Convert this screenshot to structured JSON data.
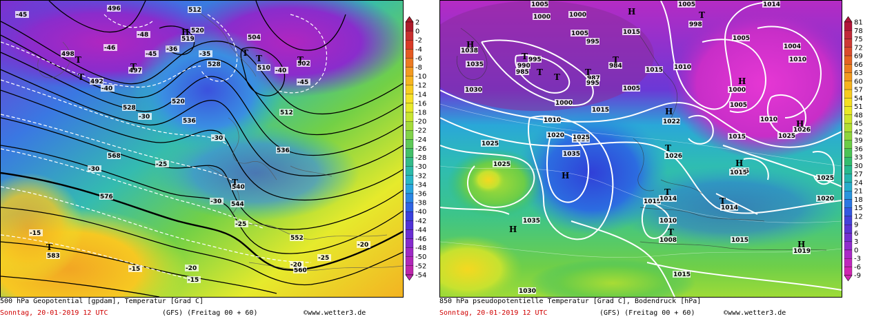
{
  "left": {
    "caption_title": "500 hPa Geopotential [gpdam], Temperatur [Grad C]",
    "caption_date": "Sonntag, 20-01-2019  12 UTC",
    "caption_model": "(GFS)  (Freitag 00 + 60)",
    "caption_copyright": "©www.wetter3.de",
    "scale_ticks": [
      "2",
      "0",
      "-2",
      "-4",
      "-6",
      "-8",
      "-10",
      "-12",
      "-14",
      "-16",
      "-18",
      "-20",
      "-22",
      "-24",
      "-26",
      "-28",
      "-30",
      "-32",
      "-34",
      "-36",
      "-38",
      "-40",
      "-42",
      "-44",
      "-46",
      "-48",
      "-50",
      "-52",
      "-54"
    ],
    "scale_colors": [
      "#ad1a2a",
      "#c72f2f",
      "#d83b28",
      "#e45a23",
      "#ec7a22",
      "#f29a22",
      "#f6b522",
      "#f8cd22",
      "#f7e22a",
      "#e8ea2c",
      "#c9e632",
      "#a6dd3a",
      "#82d34a",
      "#5ec957",
      "#43c06a",
      "#33bb8a",
      "#2dbaa9",
      "#2ab7c7",
      "#2aa6de",
      "#2b86e4",
      "#2f63e4",
      "#3a40de",
      "#5032d6",
      "#6a2ed2",
      "#852bcc",
      "#9e2ac4",
      "#b028b8",
      "#bd27ab"
    ],
    "labels": [
      {
        "t": "-45",
        "c": "#fff"
      },
      {
        "t": "496",
        "c": "#000"
      },
      {
        "t": "512",
        "c": "#000"
      },
      {
        "t": "-48",
        "c": "#000"
      },
      {
        "t": "-46",
        "c": "#000"
      },
      {
        "t": "-45",
        "c": "#000"
      },
      {
        "t": "-36",
        "c": "#000"
      },
      {
        "t": "-35",
        "c": "#000"
      },
      {
        "t": "498",
        "c": "#000"
      },
      {
        "t": "519",
        "c": "#000"
      },
      {
        "t": "520",
        "c": "#000"
      },
      {
        "t": "504",
        "c": "#000"
      },
      {
        "t": "528",
        "c": "#000"
      },
      {
        "t": "-40",
        "c": "#000"
      },
      {
        "t": "-45",
        "c": "#000"
      },
      {
        "t": "502",
        "c": "#000"
      },
      {
        "t": "510",
        "c": "#000"
      },
      {
        "t": "497",
        "c": "#000"
      },
      {
        "t": "492",
        "c": "#000"
      },
      {
        "t": "-40",
        "c": "#000"
      },
      {
        "t": "528",
        "c": "#000"
      },
      {
        "t": "536",
        "c": "#000"
      },
      {
        "t": "-30",
        "c": "#000"
      },
      {
        "t": "-30",
        "c": "#000"
      },
      {
        "t": "544",
        "c": "#000"
      },
      {
        "t": "568",
        "c": "#000"
      },
      {
        "t": "-30",
        "c": "#000"
      },
      {
        "t": "-25",
        "c": "#000"
      },
      {
        "t": "540",
        "c": "#000"
      },
      {
        "t": "576",
        "c": "#000"
      },
      {
        "t": "-30",
        "c": "#000"
      },
      {
        "t": "-25",
        "c": "#000"
      },
      {
        "t": "552",
        "c": "#000"
      },
      {
        "t": "-20",
        "c": "#000"
      },
      {
        "t": "-15",
        "c": "#000"
      },
      {
        "t": "583",
        "c": "#000"
      },
      {
        "t": "-15",
        "c": "#000"
      },
      {
        "t": "-20",
        "c": "#000"
      },
      {
        "t": "560",
        "c": "#000"
      },
      {
        "t": "-15",
        "c": "#000"
      },
      {
        "t": "-20",
        "c": "#000"
      },
      {
        "t": "-25",
        "c": "#000"
      },
      {
        "t": "512",
        "c": "#000"
      },
      {
        "t": "520",
        "c": "#000"
      },
      {
        "t": "536",
        "c": "#000"
      }
    ],
    "pressure_marks": [
      "T",
      "H",
      "T",
      "T",
      "T",
      "T",
      "T",
      "T",
      "T"
    ]
  },
  "right": {
    "caption_title": "850 hPa pseudopotentielle Temperatur [Grad C], Bodendruck [hPa]",
    "caption_date": "Sonntag, 20-01-2019  12 UTC",
    "caption_model": "(GFS)  (Freitag 00 + 60)",
    "caption_copyright": "©www.wetter3.de",
    "scale_ticks": [
      "81",
      "78",
      "75",
      "72",
      "69",
      "66",
      "63",
      "60",
      "57",
      "54",
      "51",
      "48",
      "45",
      "42",
      "39",
      "36",
      "33",
      "30",
      "27",
      "24",
      "21",
      "18",
      "15",
      "12",
      "9",
      "6",
      "3",
      "0",
      "-3",
      "-6",
      "-9"
    ],
    "scale_colors": [
      "#b2163a",
      "#c02a3a",
      "#cd3a36",
      "#da4c2e",
      "#e46424",
      "#ec7f20",
      "#f29a1f",
      "#f6b31f",
      "#f8cb20",
      "#f6df22",
      "#eae927",
      "#cfe62d",
      "#b1df33",
      "#8fd63c",
      "#6ccd47",
      "#4bc456",
      "#33bd6f",
      "#28b98e",
      "#25b5ad",
      "#27adca",
      "#2a95dd",
      "#2c77e2",
      "#3358e0",
      "#4341d9",
      "#5a34d4",
      "#7430d0",
      "#902dcc",
      "#aa2ac6",
      "#c028bc",
      "#cf27b1"
    ],
    "labels": [
      {
        "t": "1005",
        "c": "#000"
      },
      {
        "t": "1000",
        "c": "#000"
      },
      {
        "t": "1015",
        "c": "#000"
      },
      {
        "t": "1005",
        "c": "#000"
      },
      {
        "t": "1014",
        "c": "#000"
      },
      {
        "t": "998",
        "c": "#000"
      },
      {
        "t": "1038",
        "c": "#000"
      },
      {
        "t": "1035",
        "c": "#000"
      },
      {
        "t": "1030",
        "c": "#000"
      },
      {
        "t": "995",
        "c": "#000"
      },
      {
        "t": "990",
        "c": "#000"
      },
      {
        "t": "985",
        "c": "#000"
      },
      {
        "t": "1000",
        "c": "#000"
      },
      {
        "t": "1005",
        "c": "#000"
      },
      {
        "t": "995",
        "c": "#000"
      },
      {
        "t": "984",
        "c": "#000"
      },
      {
        "t": "987",
        "c": "#000"
      },
      {
        "t": "995",
        "c": "#000"
      },
      {
        "t": "1015",
        "c": "#000"
      },
      {
        "t": "1010",
        "c": "#000"
      },
      {
        "t": "1005",
        "c": "#000"
      },
      {
        "t": "1000",
        "c": "#000"
      },
      {
        "t": "1010",
        "c": "#000"
      },
      {
        "t": "1015",
        "c": "#000"
      },
      {
        "t": "1020",
        "c": "#000"
      },
      {
        "t": "1025",
        "c": "#000"
      },
      {
        "t": "1030",
        "c": "#000"
      },
      {
        "t": "1035",
        "c": "#000"
      },
      {
        "t": "1025",
        "c": "#000"
      },
      {
        "t": "1022",
        "c": "#000"
      },
      {
        "t": "1025",
        "c": "#000"
      },
      {
        "t": "1026",
        "c": "#000"
      },
      {
        "t": "1026",
        "c": "#000"
      },
      {
        "t": "1015",
        "c": "#000"
      },
      {
        "t": "1015",
        "c": "#000"
      },
      {
        "t": "1014",
        "c": "#000"
      },
      {
        "t": "1014",
        "c": "#000"
      },
      {
        "t": "1015",
        "c": "#000"
      },
      {
        "t": "1010",
        "c": "#000"
      },
      {
        "t": "1008",
        "c": "#000"
      },
      {
        "t": "1015",
        "c": "#000"
      },
      {
        "t": "1019",
        "c": "#000"
      },
      {
        "t": "1015",
        "c": "#000"
      },
      {
        "t": "1030",
        "c": "#000"
      },
      {
        "t": "1035",
        "c": "#000"
      },
      {
        "t": "1020",
        "c": "#000"
      },
      {
        "t": "1025",
        "c": "#000"
      },
      {
        "t": "1005",
        "c": "#000"
      },
      {
        "t": "1004",
        "c": "#000"
      },
      {
        "t": "1010",
        "c": "#000"
      },
      {
        "t": "1000",
        "c": "#000"
      },
      {
        "t": "1005",
        "c": "#000"
      },
      {
        "t": "1015",
        "c": "#000"
      },
      {
        "t": "1025",
        "c": "#000"
      },
      {
        "t": "1010",
        "c": "#000"
      }
    ],
    "pressure_marks": [
      "T",
      "H",
      "T",
      "T",
      "T",
      "T",
      "T",
      "H",
      "H",
      "H",
      "H",
      "H",
      "T",
      "T",
      "T",
      "T",
      "H",
      "H",
      "H"
    ]
  }
}
